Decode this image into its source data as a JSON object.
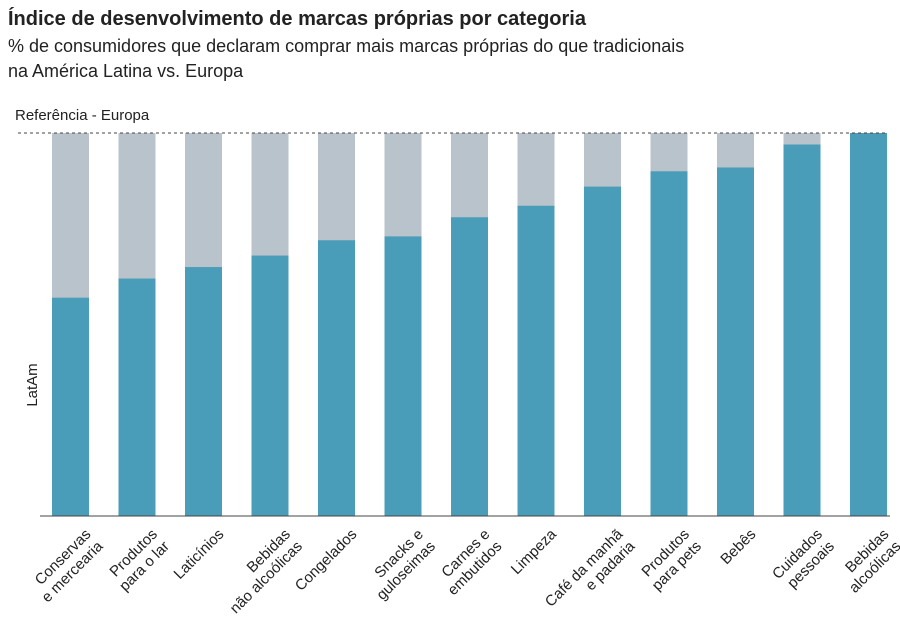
{
  "chart_data": {
    "type": "bar",
    "title": "Índice de desenvolvimento de marcas próprias por categoria",
    "subtitle": [
      "% de consumidores que declaram comprar mais marcas próprias do que tradicionais",
      "na América Latina vs. Europa"
    ],
    "reference_label": "Referência  - Europa",
    "series_label": "LatAm",
    "categories": [
      "Conservas\ne mercearia",
      "Produtos\npara o lar",
      "Laticínios",
      "Bebidas\nnão alcoólicas",
      "Congelados",
      "Snacks e\nguloseimas",
      "Carnes e\nembutidos",
      "Limpeza",
      "Café da manhã\ne padaria",
      "Produtos\npara pets",
      "Bebês",
      "Cuidados\npessoais",
      "Bebidas\nalcoólicas"
    ],
    "values": [
      57,
      62,
      65,
      68,
      72,
      73,
      78,
      81,
      86,
      90,
      91,
      97,
      100
    ],
    "color": "#4a9db8",
    "reference_color": "#b9c3cb",
    "ylim": [
      0,
      100
    ]
  }
}
